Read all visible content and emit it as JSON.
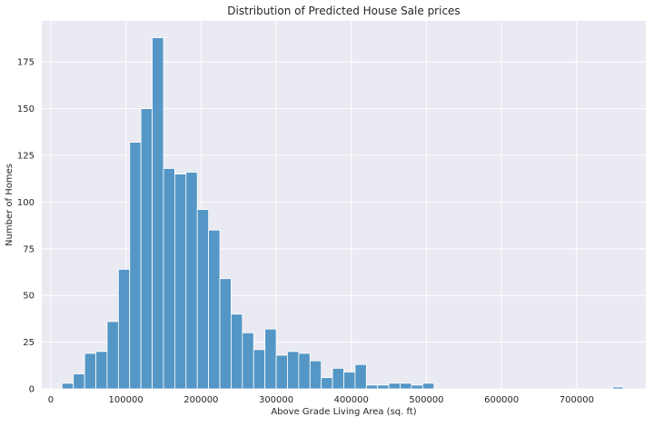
{
  "chart_data": {
    "type": "bar",
    "subtype": "histogram",
    "title": "Distribution of Predicted House Sale prices",
    "xlabel": "Above Grade Living Area (sq. ft)",
    "ylabel": "Number of Homes",
    "xlim": [
      -12000,
      792000
    ],
    "ylim": [
      0,
      197
    ],
    "xticks": [
      0,
      100000,
      200000,
      300000,
      400000,
      500000,
      600000,
      700000
    ],
    "yticks": [
      0,
      25,
      50,
      75,
      100,
      125,
      150,
      175
    ],
    "grid": true,
    "legend": "none",
    "bin_width": 15000,
    "bin_start": 15000,
    "counts": [
      3,
      8,
      19,
      20,
      36,
      64,
      132,
      150,
      188,
      118,
      115,
      116,
      96,
      85,
      59,
      40,
      30,
      21,
      32,
      18,
      20,
      19,
      15,
      6,
      11,
      9,
      13,
      2,
      2,
      3,
      3,
      2,
      3,
      0,
      0,
      0,
      0,
      0,
      0,
      0,
      0,
      0,
      0,
      0,
      0,
      0,
      0,
      0,
      0,
      0
    ],
    "outlier_bins": [
      {
        "x0": 748000,
        "x1": 762000,
        "count": 1
      }
    ],
    "colors": {
      "bar": "#5497c6",
      "bar_edge": "#ffffff",
      "background": "#eaeaf2",
      "grid": "#ffffff"
    }
  }
}
